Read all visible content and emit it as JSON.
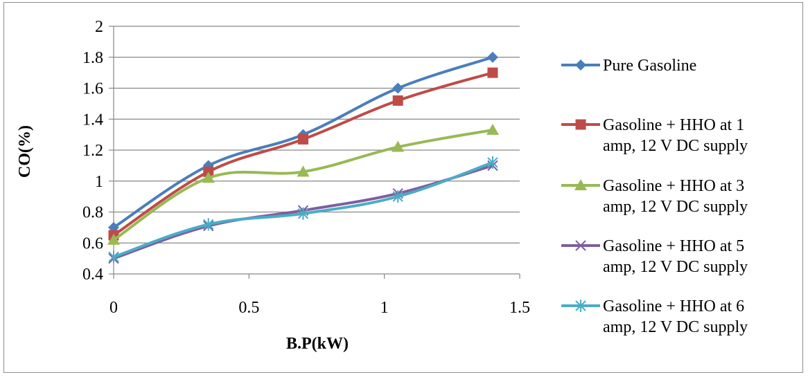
{
  "chart_data": {
    "type": "line",
    "xlabel": "B.P(kW)",
    "ylabel": "CO(%)",
    "xlim": [
      0,
      1.5
    ],
    "ylim": [
      0.4,
      2
    ],
    "x_ticks": [
      "0",
      "0.5",
      "1",
      "1.5"
    ],
    "y_ticks": [
      "0.4",
      "0.6",
      "0.8",
      "1",
      "1.2",
      "1.4",
      "1.6",
      "1.8",
      "2"
    ],
    "grid": "horizontal",
    "legend_position": "right",
    "x": [
      0,
      0.35,
      0.7,
      1.05,
      1.4
    ],
    "series": [
      {
        "name": "Pure Gasoline",
        "legend_lines": [
          "Pure Gasoline"
        ],
        "values": [
          0.7,
          1.1,
          1.3,
          1.6,
          1.8
        ],
        "color": "#4a7ebb",
        "marker": "diamond"
      },
      {
        "name": "Gasoline + HHO at 1 amp, 12 V DC supply",
        "legend_lines": [
          "Gasoline + HHO at 1",
          "amp, 12 V DC supply"
        ],
        "values": [
          0.65,
          1.06,
          1.27,
          1.52,
          1.7
        ],
        "color": "#be4b48",
        "marker": "square"
      },
      {
        "name": "Gasoline + HHO at 3 amp, 12 V DC supply",
        "legend_lines": [
          "Gasoline + HHO at 3",
          "amp, 12 V DC supply"
        ],
        "values": [
          0.62,
          1.02,
          1.06,
          1.22,
          1.33
        ],
        "color": "#98b954",
        "marker": "triangle"
      },
      {
        "name": "Gasoline + HHO at 5 amp, 12 V DC supply",
        "legend_lines": [
          "Gasoline + HHO at 5",
          "amp, 12 V DC supply"
        ],
        "values": [
          0.5,
          0.71,
          0.81,
          0.92,
          1.1
        ],
        "color": "#7d5fa0",
        "marker": "x"
      },
      {
        "name": "Gasoline + HHO at 6 amp, 12 V DC supply",
        "legend_lines": [
          "Gasoline + HHO at 6",
          "amp, 12 V DC supply"
        ],
        "values": [
          0.51,
          0.72,
          0.79,
          0.9,
          1.12
        ],
        "color": "#4bacc6",
        "marker": "star"
      }
    ]
  }
}
